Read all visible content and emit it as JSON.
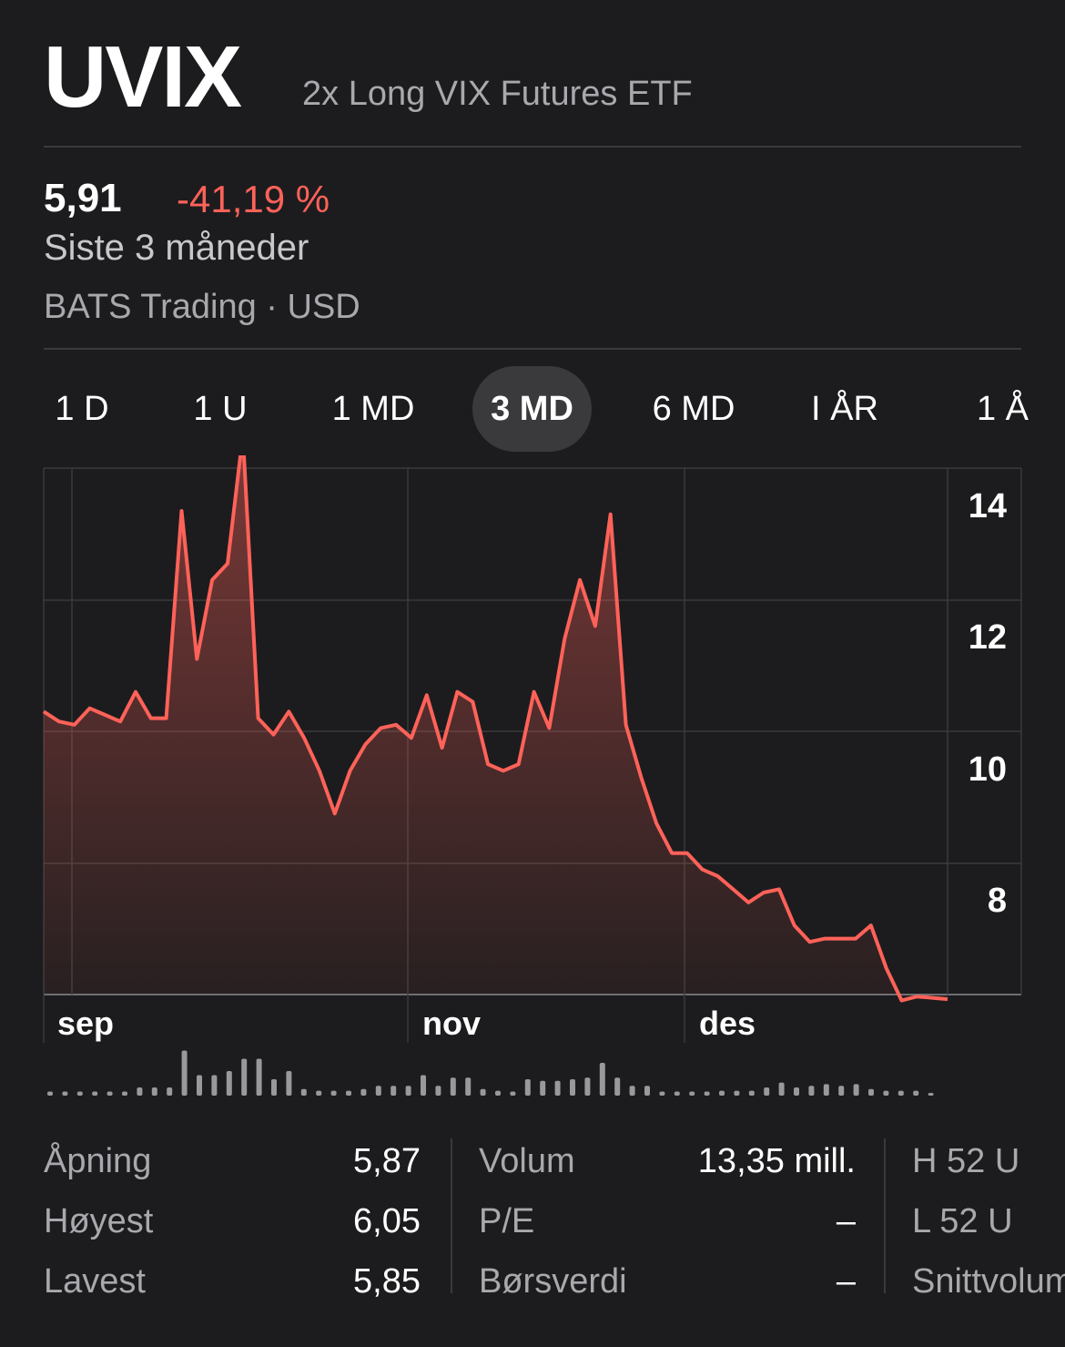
{
  "header": {
    "ticker": "UVIX",
    "name": "2x Long VIX Futures ETF"
  },
  "quote": {
    "price": "5,91",
    "change": "-41,19 %",
    "period": "Siste 3 måneder",
    "exchange": "BATS Trading · USD"
  },
  "colors": {
    "background": "#1c1c1e",
    "negative": "#ff6259",
    "muted": "#a8a8ad",
    "separator": "#3a3a3c"
  },
  "tabs": [
    {
      "label": "1 D",
      "active": false
    },
    {
      "label": "1 U",
      "active": false
    },
    {
      "label": "1 MD",
      "active": false
    },
    {
      "label": "3 MD",
      "active": true
    },
    {
      "label": "6 MD",
      "active": false
    },
    {
      "label": "I ÅR",
      "active": false
    },
    {
      "label": "1 Å",
      "active": false
    }
  ],
  "chart_data": {
    "type": "area",
    "y_ticks": [
      "14",
      "12",
      "10",
      "8"
    ],
    "x_ticks": [
      "sep",
      "nov",
      "des"
    ],
    "ylim": [
      6.0,
      14.5
    ],
    "grid": true,
    "series": [
      {
        "values": [
          10.3,
          10.15,
          10.1,
          10.35,
          10.25,
          10.15,
          10.6,
          10.2,
          10.2,
          13.35,
          11.1,
          12.3,
          12.55,
          14.5,
          10.2,
          9.95,
          10.3,
          9.9,
          9.4,
          8.75,
          9.4,
          9.8,
          10.05,
          10.1,
          9.9,
          10.55,
          9.75,
          10.6,
          10.45,
          9.5,
          9.4,
          9.5,
          10.6,
          10.05,
          11.4,
          12.3,
          11.6,
          13.3,
          10.1,
          9.3,
          8.6,
          8.15,
          8.15,
          7.9,
          7.8,
          7.6,
          7.4,
          7.55,
          7.6,
          7.05,
          6.8,
          6.85,
          6.85,
          6.85,
          7.05,
          6.4,
          5.91,
          5.97,
          5.95,
          5.93
        ],
        "volume": [
          0.05,
          0.05,
          0.05,
          0.05,
          0.05,
          0.05,
          0.1,
          0.1,
          0.1,
          0.55,
          0.25,
          0.25,
          0.3,
          0.45,
          0.45,
          0.2,
          0.3,
          0.08,
          0.06,
          0.06,
          0.06,
          0.08,
          0.12,
          0.12,
          0.12,
          0.25,
          0.12,
          0.22,
          0.22,
          0.08,
          0.06,
          0.05,
          0.2,
          0.18,
          0.18,
          0.2,
          0.22,
          0.4,
          0.22,
          0.12,
          0.12,
          0.05,
          0.05,
          0.05,
          0.05,
          0.06,
          0.06,
          0.06,
          0.1,
          0.16,
          0.1,
          0.12,
          0.14,
          0.12,
          0.14,
          0.08,
          0.06,
          0.06,
          0.06,
          0.03
        ]
      }
    ]
  },
  "stats": {
    "col1": [
      {
        "label": "Åpning",
        "value": "5,87"
      },
      {
        "label": "Høyest",
        "value": "6,05"
      },
      {
        "label": "Lavest",
        "value": "5,85"
      }
    ],
    "col2": [
      {
        "label": "Volum",
        "value": "13,35 mill."
      },
      {
        "label": "P/E",
        "value": "–"
      },
      {
        "label": "Børsverdi",
        "value": "–"
      }
    ],
    "col3": [
      {
        "label": "H 52 U"
      },
      {
        "label": "L 52 U"
      },
      {
        "label": "Snittvolum"
      }
    ]
  }
}
